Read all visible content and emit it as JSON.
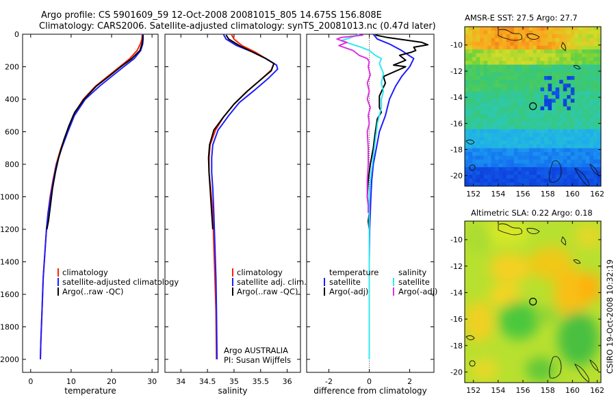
{
  "title": {
    "line1": "Argo profile: CS 5901609_59 12-Oct-2008 20081015_805 14.675S 156.808E",
    "line2": "Climatology: CARS2006. Satellite-adjusted climatology: synTS_20081013.nc (0.47d later)"
  },
  "side_label": "CSIRO 19-Oct-2008 10:32:19",
  "colors": {
    "climatology": "#ff2000",
    "satellite": "#1c1cff",
    "argo": "#000000",
    "sal_satellite": "#30e8f0",
    "sal_argo": "#e030e0"
  },
  "chart_data": [
    {
      "type": "line",
      "id": "temperature",
      "xlabel": "temperature",
      "ylabel": "",
      "xlim": [
        -2,
        31.5
      ],
      "ylim": [
        2080,
        0
      ],
      "xticks": [
        "0",
        "10",
        "20",
        "30"
      ],
      "xtick_values": [
        0,
        10,
        20,
        30
      ],
      "yticks": [
        "0",
        "200",
        "400",
        "600",
        "800",
        "1000",
        "1200",
        "1400",
        "1600",
        "1800",
        "2000"
      ],
      "ytick_values": [
        0,
        200,
        400,
        600,
        800,
        1000,
        1200,
        1400,
        1600,
        1800,
        2000
      ],
      "legend": [
        "climatology",
        "satellite-adjusted climatology",
        "Argo(..raw -QC)"
      ],
      "series": [
        {
          "name": "climatology",
          "color_key": "climatology",
          "points": [
            [
              27.6,
              0
            ],
            [
              27.5,
              30
            ],
            [
              27.1,
              60
            ],
            [
              26.3,
              100
            ],
            [
              24.5,
              150
            ],
            [
              22.0,
              200
            ],
            [
              19.5,
              250
            ],
            [
              16.0,
              320
            ],
            [
              13.0,
              400
            ],
            [
              10.5,
              500
            ],
            [
              9.0,
              600
            ],
            [
              7.5,
              700
            ],
            [
              6.3,
              800
            ],
            [
              5.5,
              900
            ],
            [
              4.8,
              1000
            ],
            [
              4.3,
              1100
            ],
            [
              3.9,
              1200
            ],
            [
              3.5,
              1350
            ],
            [
              3.1,
              1500
            ],
            [
              2.8,
              1700
            ],
            [
              2.5,
              1900
            ],
            [
              2.4,
              2000
            ]
          ]
        },
        {
          "name": "satellite-adjusted climatology",
          "color_key": "satellite",
          "points": [
            [
              27.8,
              0
            ],
            [
              27.8,
              30
            ],
            [
              27.7,
              60
            ],
            [
              27.2,
              100
            ],
            [
              25.6,
              150
            ],
            [
              23.0,
              200
            ],
            [
              20.5,
              250
            ],
            [
              17.0,
              320
            ],
            [
              13.5,
              400
            ],
            [
              10.8,
              500
            ],
            [
              9.2,
              600
            ],
            [
              7.7,
              700
            ],
            [
              6.4,
              800
            ],
            [
              5.6,
              900
            ],
            [
              4.9,
              1000
            ],
            [
              4.3,
              1100
            ],
            [
              3.9,
              1200
            ],
            [
              3.5,
              1350
            ],
            [
              3.1,
              1500
            ],
            [
              2.8,
              1700
            ],
            [
              2.5,
              1900
            ],
            [
              2.4,
              2000
            ]
          ]
        },
        {
          "name": "Argo(..raw -QC)",
          "color_key": "argo",
          "points": [
            [
              27.7,
              5
            ],
            [
              27.7,
              30
            ],
            [
              27.5,
              60
            ],
            [
              27.0,
              100
            ],
            [
              25.0,
              150
            ],
            [
              22.3,
              200
            ],
            [
              19.8,
              250
            ],
            [
              16.2,
              320
            ],
            [
              13.2,
              400
            ],
            [
              10.9,
              480
            ],
            [
              9.5,
              560
            ],
            [
              8.2,
              650
            ],
            [
              7.0,
              750
            ],
            [
              6.1,
              850
            ],
            [
              5.4,
              950
            ],
            [
              4.9,
              1050
            ],
            [
              4.4,
              1150
            ],
            [
              4.0,
              1200
            ]
          ]
        }
      ]
    },
    {
      "type": "line",
      "id": "salinity",
      "xlabel": "salinity",
      "xlim": [
        33.7,
        36.25
      ],
      "ylim": [
        2080,
        0
      ],
      "xticks": [
        "34",
        "34.5",
        "35",
        "35.5",
        "36"
      ],
      "xtick_values": [
        34,
        34.5,
        35,
        35.5,
        36
      ],
      "legend": [
        "climatology",
        "satellite adj. clim.",
        "Argo(..raw -QC)"
      ],
      "annotation": [
        "Argo AUSTRALIA",
        "PI: Susan Wijffels"
      ],
      "series": [
        {
          "name": "climatology",
          "color_key": "climatology",
          "points": [
            [
              34.95,
              0
            ],
            [
              35.0,
              30
            ],
            [
              35.15,
              70
            ],
            [
              35.4,
              110
            ],
            [
              35.6,
              150
            ],
            [
              35.75,
              180
            ],
            [
              35.7,
              220
            ],
            [
              35.5,
              280
            ],
            [
              35.25,
              350
            ],
            [
              35.0,
              430
            ],
            [
              34.8,
              510
            ],
            [
              34.65,
              590
            ],
            [
              34.55,
              680
            ],
            [
              34.53,
              760
            ],
            [
              34.53,
              850
            ],
            [
              34.56,
              950
            ],
            [
              34.6,
              1100
            ],
            [
              34.62,
              1300
            ],
            [
              34.64,
              1500
            ],
            [
              34.66,
              1700
            ],
            [
              34.67,
              2000
            ]
          ]
        },
        {
          "name": "satellite adj. clim.",
          "color_key": "satellite",
          "points": [
            [
              34.8,
              0
            ],
            [
              34.85,
              30
            ],
            [
              35.05,
              70
            ],
            [
              35.35,
              110
            ],
            [
              35.6,
              150
            ],
            [
              35.8,
              190
            ],
            [
              35.82,
              215
            ],
            [
              35.65,
              270
            ],
            [
              35.4,
              340
            ],
            [
              35.1,
              420
            ],
            [
              34.9,
              500
            ],
            [
              34.7,
              590
            ],
            [
              34.6,
              680
            ],
            [
              34.58,
              760
            ],
            [
              34.58,
              850
            ],
            [
              34.6,
              950
            ],
            [
              34.62,
              1100
            ],
            [
              34.64,
              1300
            ],
            [
              34.66,
              1500
            ],
            [
              34.67,
              1700
            ],
            [
              34.68,
              2000
            ]
          ]
        },
        {
          "name": "Argo(..raw -QC)",
          "color_key": "argo",
          "points": [
            [
              34.85,
              5
            ],
            [
              34.9,
              30
            ],
            [
              35.1,
              70
            ],
            [
              35.35,
              110
            ],
            [
              35.6,
              150
            ],
            [
              35.75,
              180
            ],
            [
              35.7,
              225
            ],
            [
              35.5,
              280
            ],
            [
              35.25,
              350
            ],
            [
              35.0,
              430
            ],
            [
              34.8,
              510
            ],
            [
              34.62,
              590
            ],
            [
              34.54,
              680
            ],
            [
              34.52,
              760
            ],
            [
              34.53,
              850
            ],
            [
              34.55,
              950
            ],
            [
              34.58,
              1100
            ],
            [
              34.6,
              1200
            ]
          ]
        }
      ]
    },
    {
      "type": "line",
      "id": "difference",
      "xlabel": "difference from climatology",
      "xlim": [
        -3.1,
        3.2
      ],
      "ylim": [
        2080,
        0
      ],
      "xticks": [
        "-2",
        "0",
        "2"
      ],
      "xtick_values": [
        -2,
        0,
        2
      ],
      "legend_temperature_header": "temperature",
      "legend_salinity_header": "salinity",
      "legend_temperature": [
        "satellite",
        "Argo(-adj)"
      ],
      "legend_salinity": [
        "satellite",
        "Argo(-adj)"
      ],
      "series": [
        {
          "name": "temperature satellite",
          "color_key": "satellite",
          "points": [
            [
              0.2,
              0
            ],
            [
              0.4,
              30
            ],
            [
              1.0,
              60
            ],
            [
              1.6,
              100
            ],
            [
              2.2,
              150
            ],
            [
              2.0,
              200
            ],
            [
              1.6,
              260
            ],
            [
              1.3,
              320
            ],
            [
              1.0,
              400
            ],
            [
              0.8,
              500
            ],
            [
              0.5,
              600
            ],
            [
              0.35,
              700
            ],
            [
              0.2,
              800
            ],
            [
              0.12,
              900
            ],
            [
              0.08,
              1000
            ],
            [
              0.05,
              1100
            ],
            [
              0.02,
              1200
            ],
            [
              0.0,
              1400
            ],
            [
              0.0,
              2000
            ]
          ]
        },
        {
          "name": "temperature Argo(-adj)",
          "color_key": "argo",
          "points": [
            [
              0.3,
              5
            ],
            [
              0.9,
              20
            ],
            [
              2.6,
              50
            ],
            [
              2.9,
              65
            ],
            [
              2.2,
              80
            ],
            [
              2.3,
              100
            ],
            [
              2.1,
              110
            ],
            [
              1.5,
              130
            ],
            [
              1.8,
              160
            ],
            [
              1.2,
              190
            ],
            [
              1.8,
              200
            ],
            [
              0.7,
              260
            ],
            [
              0.8,
              300
            ],
            [
              0.5,
              380
            ],
            [
              0.5,
              450
            ],
            [
              0.6,
              480
            ],
            [
              0.4,
              520
            ],
            [
              0.3,
              600
            ],
            [
              0.2,
              700
            ],
            [
              0.05,
              800
            ],
            [
              -0.05,
              900
            ],
            [
              -0.1,
              1000
            ],
            [
              0.0,
              1100
            ],
            [
              -0.05,
              1150
            ],
            [
              0.0,
              1200
            ]
          ]
        },
        {
          "name": "salinity satellite",
          "color_key": "sal_satellite",
          "points": [
            [
              -0.5,
              0
            ],
            [
              -0.9,
              20
            ],
            [
              -1.4,
              40
            ],
            [
              -0.9,
              60
            ],
            [
              -0.4,
              80
            ],
            [
              0.0,
              100
            ],
            [
              0.3,
              130
            ],
            [
              0.6,
              150
            ],
            [
              0.5,
              180
            ],
            [
              0.7,
              240
            ],
            [
              0.6,
              300
            ],
            [
              0.7,
              350
            ],
            [
              0.6,
              400
            ],
            [
              0.6,
              450
            ],
            [
              0.4,
              550
            ],
            [
              0.35,
              600
            ],
            [
              0.25,
              700
            ],
            [
              0.15,
              800
            ],
            [
              0.05,
              900
            ],
            [
              0.0,
              1000
            ],
            [
              0.0,
              2000
            ]
          ]
        },
        {
          "name": "salinity Argo(-adj)",
          "color_key": "sal_argo",
          "points": [
            [
              -0.3,
              5
            ],
            [
              -1.4,
              20
            ],
            [
              -1.6,
              30
            ],
            [
              -1.1,
              50
            ],
            [
              -1.5,
              70
            ],
            [
              -0.8,
              100
            ],
            [
              -0.5,
              130
            ],
            [
              -0.1,
              150
            ],
            [
              0.0,
              170
            ],
            [
              -0.05,
              200
            ],
            [
              0.05,
              250
            ],
            [
              -0.1,
              300
            ],
            [
              0.0,
              350
            ],
            [
              -0.1,
              400
            ],
            [
              0.05,
              450
            ],
            [
              -0.05,
              500
            ],
            [
              0.0,
              550
            ],
            [
              -0.1,
              600
            ],
            [
              -0.05,
              700
            ],
            [
              -0.05,
              800
            ],
            [
              -0.1,
              900
            ],
            [
              -0.1,
              1000
            ],
            [
              -0.05,
              1050
            ],
            [
              -0.05,
              1100
            ]
          ]
        }
      ]
    }
  ],
  "maps": [
    {
      "id": "sst",
      "title": "AMSR-E SST: 27.5 Argo: 27.7",
      "lat_ticks": [
        "-10",
        "-12",
        "-14",
        "-16",
        "-18",
        "-20"
      ],
      "lon_ticks": [
        "152",
        "154",
        "156",
        "158",
        "160",
        "162"
      ],
      "marker": {
        "lon": 156.81,
        "lat": -14.68
      }
    },
    {
      "id": "sla",
      "title": "Altimetric SLA: 0.22 Argo: 0.18",
      "lat_ticks": [
        "-10",
        "-12",
        "-14",
        "-16",
        "-18",
        "-20"
      ],
      "lon_ticks": [
        "152",
        "154",
        "156",
        "158",
        "160",
        "162"
      ],
      "marker": {
        "lon": 156.81,
        "lat": -14.68
      }
    }
  ]
}
